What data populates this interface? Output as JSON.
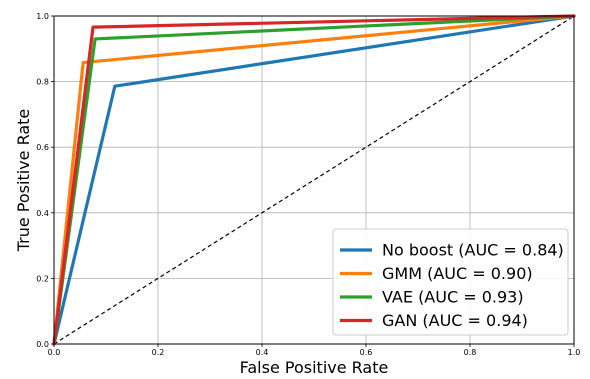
{
  "chart_data": {
    "type": "line",
    "xlabel": "False Positive Rate",
    "ylabel": "True Positive Rate",
    "xlim": [
      0,
      1
    ],
    "ylim": [
      0,
      1
    ],
    "grid": true,
    "legend_position": "bottom-right",
    "x_ticks": [
      "0.0",
      "0.2",
      "0.4",
      "0.6",
      "0.8",
      "1.0"
    ],
    "y_ticks": [
      "0.0",
      "0.2",
      "0.4",
      "0.6",
      "0.8",
      "1.0"
    ],
    "diagonal": {
      "x": [
        0,
        1
      ],
      "y": [
        0,
        1
      ],
      "style": "dashed",
      "color": "#000000"
    },
    "series": [
      {
        "name": "No boost (AUC = 0.84)",
        "color": "#1f77b4",
        "x": [
          0,
          0.117,
          1
        ],
        "y": [
          0,
          0.786,
          1
        ]
      },
      {
        "name": "GMM (AUC = 0.90)",
        "color": "#ff7f0e",
        "x": [
          0,
          0.056,
          1
        ],
        "y": [
          0,
          0.858,
          1
        ]
      },
      {
        "name": "VAE (AUC = 0.93)",
        "color": "#2ca02c",
        "x": [
          0,
          0.079,
          1
        ],
        "y": [
          0,
          0.93,
          1
        ]
      },
      {
        "name": "GAN (AUC = 0.94)",
        "color": "#d62728",
        "x": [
          0,
          0.075,
          1
        ],
        "y": [
          0,
          0.966,
          1
        ]
      }
    ]
  }
}
